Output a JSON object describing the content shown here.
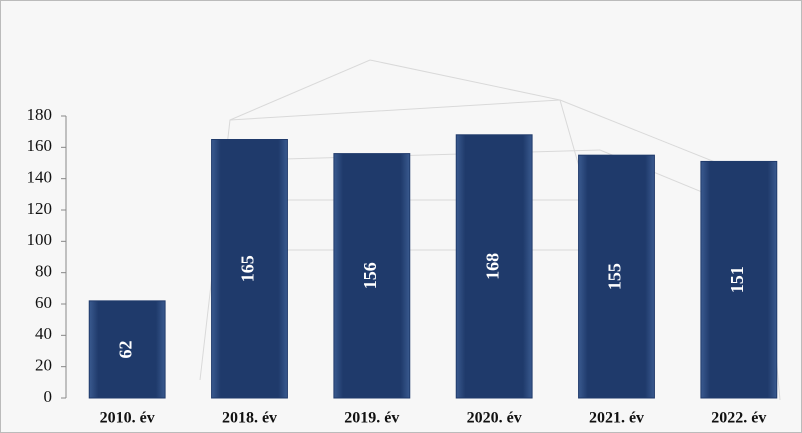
{
  "chart_data": {
    "type": "bar",
    "categories": [
      "2010. év",
      "2018. év",
      "2019. év",
      "2020. év",
      "2021. év",
      "2022. év"
    ],
    "values": [
      62,
      165,
      156,
      168,
      155,
      151
    ],
    "color": "#1f3a6b",
    "ylim": [
      0,
      180
    ],
    "yticks": [
      0,
      20,
      40,
      60,
      80,
      100,
      120,
      140,
      160,
      180
    ],
    "grid": false
  }
}
